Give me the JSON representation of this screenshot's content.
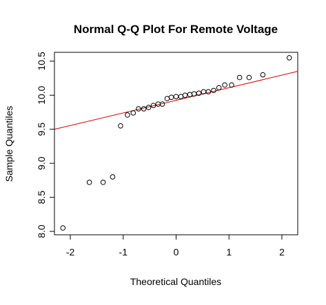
{
  "chart_data": {
    "type": "scatter",
    "title": "Normal Q-Q Plot For Remote Voltage",
    "xlabel": "Theoretical Quantiles",
    "ylabel": "Sample Quantiles",
    "xlim": [
      -2.3,
      2.3
    ],
    "ylim": [
      7.95,
      10.63
    ],
    "x_ticks": [
      -2,
      -1,
      0,
      1,
      2
    ],
    "x_tick_labels": [
      "-2",
      "-1",
      "0",
      "1",
      "2"
    ],
    "y_ticks": [
      8.0,
      8.5,
      9.0,
      9.5,
      10.0,
      10.5
    ],
    "y_tick_labels": [
      "8.0",
      "8.5",
      "9.0",
      "9.5",
      "10.0",
      "10.5"
    ],
    "grid": false,
    "legend": "none",
    "point_color": "#000000",
    "line_color": "#cc0000",
    "points": {
      "x": [
        -2.14,
        -1.64,
        -1.38,
        -1.2,
        -1.05,
        -0.92,
        -0.81,
        -0.71,
        -0.61,
        -0.52,
        -0.43,
        -0.34,
        -0.26,
        -0.17,
        -0.09,
        0.0,
        0.09,
        0.17,
        0.26,
        0.34,
        0.43,
        0.52,
        0.61,
        0.71,
        0.81,
        0.92,
        1.05,
        1.2,
        1.38,
        1.64,
        2.14
      ],
      "y": [
        8.05,
        8.72,
        8.72,
        8.8,
        9.55,
        9.71,
        9.74,
        9.8,
        9.8,
        9.82,
        9.85,
        9.87,
        9.87,
        9.95,
        9.97,
        9.98,
        9.98,
        10.0,
        10.01,
        10.02,
        10.03,
        10.05,
        10.05,
        10.07,
        10.11,
        10.15,
        10.15,
        10.26,
        10.26,
        10.3,
        10.55
      ]
    },
    "reference_line": {
      "intercept": 9.925,
      "slope": 0.185
    }
  }
}
